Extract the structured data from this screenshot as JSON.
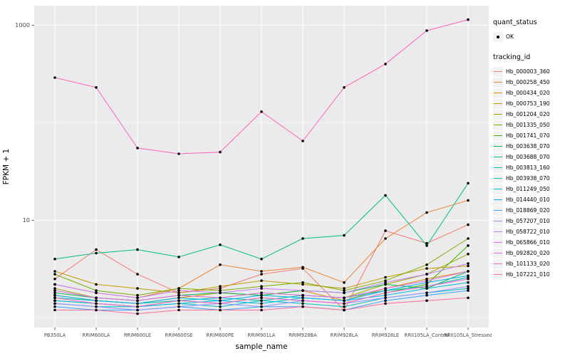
{
  "panel": {
    "bg": "#EBEBEB",
    "grid": "#FFFFFF",
    "tick_color": "#333333",
    "tick_label_color": "#4D4D4D"
  },
  "legend": {
    "quant_status_title": "quant_status",
    "quant_status_items": [
      {
        "label": "OK"
      }
    ],
    "tracking_id_title": "tracking_id"
  },
  "chart_data": {
    "type": "line",
    "title": "",
    "xlabel": "sample_name",
    "ylabel": "FPKM + 1",
    "y_scale": "log10",
    "yticks": [
      10,
      1000
    ],
    "yminor": [
      1,
      100
    ],
    "ylim": [
      0.8,
      1585
    ],
    "legend_position": "right",
    "grid": true,
    "point_color": "#000000",
    "categories": [
      "PB350LA",
      "RRIM600LA",
      "RRIM600LE",
      "RRIM600SE",
      "RRIM600PE",
      "RRIM901LA",
      "RRIM928BA",
      "RRIM928LA",
      "RRIM928LE",
      "RRII105LA_Control",
      "RRII105LA_Stressed"
    ],
    "series": [
      {
        "name": "Hb_000003_360",
        "color": "#F8766D",
        "values": [
          2.5,
          5.0,
          2.8,
          1.8,
          2.0,
          2.8,
          3.2,
          1.2,
          7.8,
          5.8,
          9.0
        ]
      },
      {
        "name": "Hb_000258_450",
        "color": "#EA8331",
        "values": [
          2.2,
          1.8,
          1.6,
          2.0,
          3.5,
          3.0,
          3.3,
          2.3,
          6.5,
          12.0,
          16.0
        ]
      },
      {
        "name": "Hb_000434_020",
        "color": "#D89000",
        "values": [
          1.7,
          1.5,
          1.4,
          1.6,
          1.8,
          1.7,
          1.9,
          1.5,
          2.0,
          2.5,
          3.0
        ]
      },
      {
        "name": "Hb_000753_190",
        "color": "#C09B00",
        "values": [
          3.0,
          2.2,
          2.0,
          1.8,
          2.1,
          2.4,
          2.2,
          2.0,
          2.6,
          3.2,
          3.4
        ]
      },
      {
        "name": "Hb_001204_020",
        "color": "#A3A500",
        "values": [
          2.0,
          1.6,
          1.5,
          1.7,
          1.6,
          1.8,
          1.7,
          1.6,
          2.2,
          2.8,
          4.5
        ]
      },
      {
        "name": "Hb_001335_050",
        "color": "#7CAE00",
        "values": [
          2.8,
          1.9,
          1.7,
          2.0,
          1.9,
          2.1,
          2.3,
          1.9,
          2.4,
          3.5,
          6.5
        ]
      },
      {
        "name": "Hb_001741_070",
        "color": "#39B600",
        "values": [
          1.5,
          1.4,
          1.3,
          1.5,
          1.4,
          1.6,
          1.5,
          1.4,
          1.8,
          2.2,
          5.5
        ]
      },
      {
        "name": "Hb_003638_070",
        "color": "#00BB4E",
        "values": [
          1.8,
          1.6,
          1.5,
          1.7,
          1.8,
          1.7,
          1.9,
          1.8,
          2.2,
          2.0,
          3.0
        ]
      },
      {
        "name": "Hb_003688_070",
        "color": "#00BF7D",
        "values": [
          4.0,
          4.6,
          5.0,
          4.2,
          5.6,
          4.0,
          6.5,
          7.0,
          18.0,
          5.5,
          24.0
        ]
      },
      {
        "name": "Hb_003813_160",
        "color": "#00C1A3",
        "values": [
          1.6,
          1.5,
          1.4,
          1.5,
          1.6,
          1.5,
          1.7,
          1.6,
          1.9,
          2.1,
          2.6
        ]
      },
      {
        "name": "Hb_003938_070",
        "color": "#00BFC4",
        "values": [
          1.4,
          1.3,
          1.3,
          1.4,
          1.3,
          1.5,
          1.4,
          1.3,
          1.6,
          1.8,
          2.0
        ]
      },
      {
        "name": "Hb_011249_050",
        "color": "#00BAE0",
        "values": [
          1.5,
          1.4,
          1.3,
          1.4,
          1.5,
          1.4,
          1.6,
          1.5,
          1.7,
          2.0,
          2.3
        ]
      },
      {
        "name": "Hb_014440_010",
        "color": "#00B0F6",
        "values": [
          1.7,
          1.5,
          1.4,
          1.6,
          1.5,
          1.7,
          1.6,
          1.5,
          1.9,
          2.3,
          2.7
        ]
      },
      {
        "name": "Hb_018869_020",
        "color": "#35A2FF",
        "values": [
          1.3,
          1.2,
          1.2,
          1.3,
          1.2,
          1.3,
          1.3,
          1.2,
          1.5,
          1.7,
          1.9
        ]
      },
      {
        "name": "Hb_057207_010",
        "color": "#9590FF",
        "values": [
          1.4,
          1.3,
          1.2,
          1.3,
          1.4,
          1.3,
          1.5,
          1.4,
          1.6,
          1.8,
          2.1
        ]
      },
      {
        "name": "Hb_058722_010",
        "color": "#C77CFF",
        "values": [
          2.2,
          1.8,
          1.6,
          1.9,
          1.8,
          2.0,
          1.9,
          1.8,
          2.3,
          2.8,
          3.6
        ]
      },
      {
        "name": "Hb_065866_010",
        "color": "#E76BF3",
        "values": [
          1.9,
          1.6,
          1.5,
          1.7,
          1.6,
          1.8,
          1.7,
          1.6,
          2.0,
          2.4,
          3.0
        ]
      },
      {
        "name": "Hb_092820_020",
        "color": "#FA62DB",
        "values": [
          1.6,
          1.4,
          1.3,
          1.5,
          1.4,
          1.6,
          1.5,
          1.4,
          1.8,
          2.1,
          2.5
        ]
      },
      {
        "name": "Hb_101133_020",
        "color": "#FF62BC",
        "values": [
          290,
          230,
          55,
          48,
          50,
          130,
          65,
          230,
          400,
          880,
          1140
        ]
      },
      {
        "name": "Hb_107221_010",
        "color": "#FF6A98",
        "values": [
          1.2,
          1.2,
          1.1,
          1.2,
          1.2,
          1.2,
          1.3,
          1.2,
          1.4,
          1.5,
          1.6
        ]
      }
    ]
  }
}
